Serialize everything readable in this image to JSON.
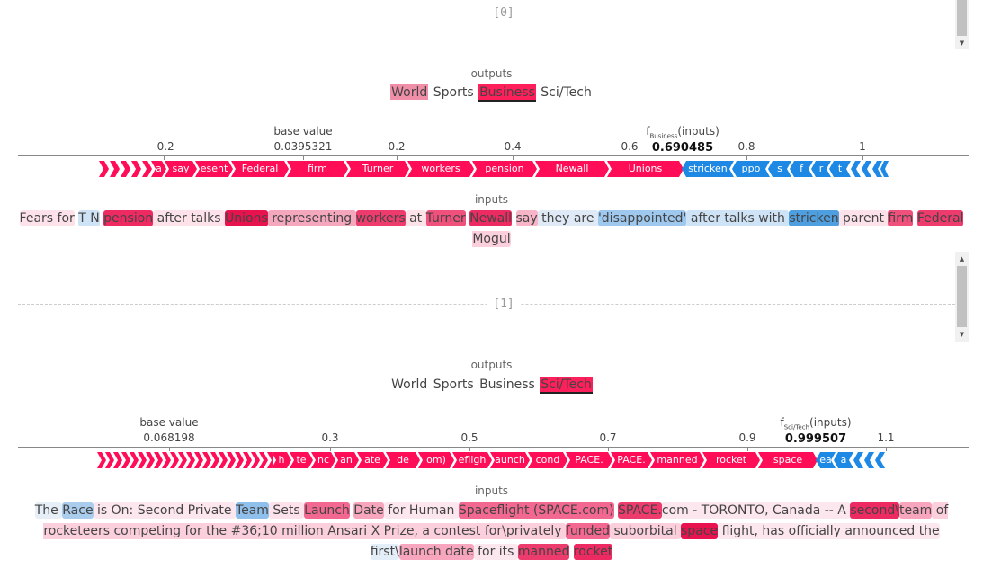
{
  "samples": [
    {
      "index_label": "[0]",
      "outputs_label": "outputs",
      "outputs": [
        {
          "label": "World",
          "bg": "#f08ea8",
          "selected": false
        },
        {
          "label": "Sports",
          "bg": "",
          "selected": false
        },
        {
          "label": "Business",
          "bg": "#ff1f5b",
          "selected": true
        },
        {
          "label": "Sci/Tech",
          "bg": "",
          "selected": false
        }
      ],
      "base_value_label": "base value",
      "base_value": "0.0395321",
      "fx_prefix": "f",
      "fx_sub": "Business",
      "fx_suffix": "(inputs)",
      "fx_value": "0.690485",
      "ticks": [
        "-0.2",
        "0.2",
        "0.4",
        "0.6",
        "0.8",
        "1"
      ],
      "band_pos": [
        "a",
        "say",
        "esent",
        "Federal",
        "firm",
        "Turner",
        "workers",
        "pension",
        "Newall",
        "Unions"
      ],
      "band_neg": [
        "stricken",
        "ppo",
        "s",
        "f",
        "r",
        "t"
      ],
      "inputs_label": "inputs",
      "tokens": [
        {
          "t": "Fears for",
          "bg": "#fde2ea"
        },
        {
          "t": " ",
          "bg": ""
        },
        {
          "t": "T N",
          "bg": "#cfe3f6"
        },
        {
          "t": " ",
          "bg": ""
        },
        {
          "t": "pension",
          "bg": "#ee2a62"
        },
        {
          "t": " after talks ",
          "bg": "#fde2ea"
        },
        {
          "t": "Unions",
          "bg": "#e8124f"
        },
        {
          "t": " representing ",
          "bg": "#f5a8bd"
        },
        {
          "t": "workers",
          "bg": "#ee3b6d"
        },
        {
          "t": " at ",
          "bg": "#fde2ea"
        },
        {
          "t": "Turner",
          "bg": "#f0507c"
        },
        {
          "t": " ",
          "bg": ""
        },
        {
          "t": "Newall",
          "bg": "#eb2b61"
        },
        {
          "t": " ",
          "bg": ""
        },
        {
          "t": "say",
          "bg": "#f7b5c7"
        },
        {
          "t": " they are ",
          "bg": "#dfeaf6"
        },
        {
          "t": "'disappointed'",
          "bg": "#9ec8ee"
        },
        {
          "t": " after talks with ",
          "bg": "#cfe3f6"
        },
        {
          "t": "stricken",
          "bg": "#4e9fe0"
        },
        {
          "t": " parent ",
          "bg": "#fde2ea"
        },
        {
          "t": "firm",
          "bg": "#f0507c"
        },
        {
          "t": " ",
          "bg": ""
        },
        {
          "t": "Federal",
          "bg": "#ee3b6d"
        },
        {
          "t": " Mogul",
          "bg": "#fbd0dc"
        }
      ]
    },
    {
      "index_label": "[1]",
      "outputs_label": "outputs",
      "outputs": [
        {
          "label": "World",
          "bg": "",
          "selected": false
        },
        {
          "label": "Sports",
          "bg": "",
          "selected": false
        },
        {
          "label": "Business",
          "bg": "",
          "selected": false
        },
        {
          "label": "Sci/Tech",
          "bg": "#ff1f5b",
          "selected": true
        }
      ],
      "base_value_label": "base value",
      "base_value": "0.068198",
      "fx_prefix": "f",
      "fx_sub": "Sci/Tech",
      "fx_suffix": "(inputs)",
      "fx_value": "0.999507",
      "ticks": [
        "0.3",
        "0.5",
        "0.7",
        "0.9",
        "1.1"
      ],
      "band_pos": [
        "h",
        "te",
        "nc",
        "an",
        "ate",
        "de",
        "om)",
        "efligh",
        "aunch",
        "cond",
        "PACE.",
        "PACE.",
        "manned",
        "rocket",
        "space"
      ],
      "band_neg": [
        "ea",
        "a"
      ],
      "inputs_label": "inputs",
      "tokens": [
        {
          "t": "The ",
          "bg": "#e6eff8"
        },
        {
          "t": "Race",
          "bg": "#aacdee"
        },
        {
          "t": " is On: Second Private ",
          "bg": "#fde7ee"
        },
        {
          "t": "Team",
          "bg": "#8fc0ec"
        },
        {
          "t": " Sets ",
          "bg": "#fde2ea"
        },
        {
          "t": "Launch",
          "bg": "#f26890"
        },
        {
          "t": " ",
          "bg": ""
        },
        {
          "t": "Date",
          "bg": "#f7a6bd"
        },
        {
          "t": " for Human ",
          "bg": "#fde7ee"
        },
        {
          "t": "Spaceflight (SPACE.com)",
          "bg": "#f26890"
        },
        {
          "t": " ",
          "bg": ""
        },
        {
          "t": "SPACE.",
          "bg": "#ee3b6d"
        },
        {
          "t": "com - TORONTO, Canada -- A ",
          "bg": "#fde7ee"
        },
        {
          "t": "second\\",
          "bg": "#ee2a62"
        },
        {
          "t": "team",
          "bg": "#f7a6bd"
        },
        {
          "t": " of rocketeers competing for the #36;10 million Ansari X Prize, a contest for\\privately ",
          "bg": "#fbd0dc"
        },
        {
          "t": "funded",
          "bg": "#f26890"
        },
        {
          "t": " suborbital ",
          "bg": "#fbd0dc"
        },
        {
          "t": "space",
          "bg": "#e8124f"
        },
        {
          "t": " flight, has officially announced the ",
          "bg": "#fde7ee"
        },
        {
          "t": "first\\",
          "bg": "#e3eef8"
        },
        {
          "t": "launch date",
          "bg": "#f7a6bd"
        },
        {
          "t": " for its ",
          "bg": "#fde7ee"
        },
        {
          "t": "manned",
          "bg": "#ee3b6d"
        },
        {
          "t": " ",
          "bg": ""
        },
        {
          "t": "rocket",
          "bg": "#ee2a62"
        }
      ]
    }
  ]
}
